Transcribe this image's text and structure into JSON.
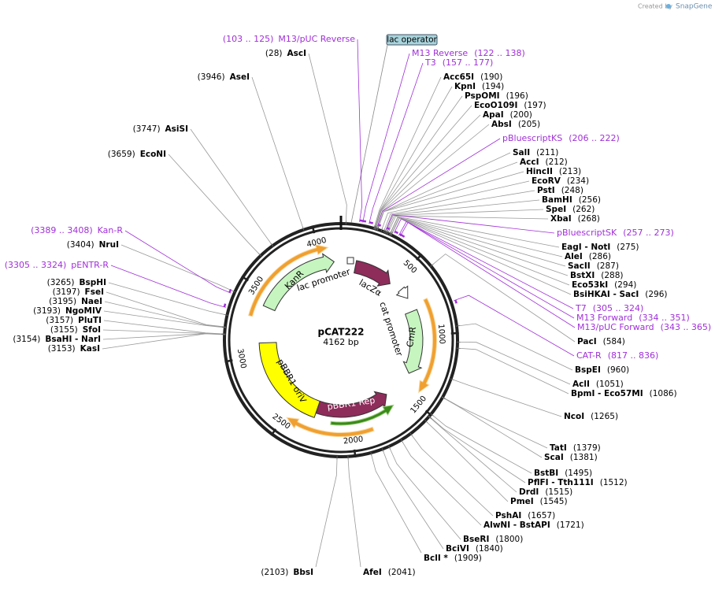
{
  "header": {
    "created_by": "Created by",
    "brand": "SnapGene"
  },
  "plasmid": {
    "name": "pCAT222",
    "size": "4162 bp"
  },
  "ruler": [
    "500",
    "1000",
    "1500",
    "2000",
    "2500",
    "3000",
    "3500",
    "4000"
  ],
  "features": {
    "kanr": "KanR",
    "lac_promoter": "lac promoter",
    "lacz": "lacZα",
    "cat_promoter": "cat promoter",
    "cmr": "CmR",
    "oriv": "pBBR1 oriV",
    "rep": "pBBR1 Rep",
    "lac_operator": "lac operator"
  },
  "sites": [
    {
      "name": "Acc65I",
      "position": "(190)"
    },
    {
      "name": "KpnI",
      "position": "(194)"
    },
    {
      "name": "PspOMI",
      "position": "(196)"
    },
    {
      "name": "EcoO109I",
      "position": "(197)"
    },
    {
      "name": "ApaI",
      "position": "(200)"
    },
    {
      "name": "AbsI",
      "position": "(205)"
    },
    {
      "name": "SalI",
      "position": "(211)"
    },
    {
      "name": "AccI",
      "position": "(212)"
    },
    {
      "name": "HincII",
      "position": "(213)"
    },
    {
      "name": "EcoRV",
      "position": "(234)"
    },
    {
      "name": "PstI",
      "position": "(248)"
    },
    {
      "name": "BamHI",
      "position": "(256)"
    },
    {
      "name": "SpeI",
      "position": "(262)"
    },
    {
      "name": "XbaI",
      "position": "(268)"
    },
    {
      "name": "EagI  - NotI",
      "position": "(275)"
    },
    {
      "name": "AleI",
      "position": "(286)"
    },
    {
      "name": "SacII",
      "position": "(287)"
    },
    {
      "name": "BstXI",
      "position": "(288)"
    },
    {
      "name": "Eco53kI",
      "position": "(294)"
    },
    {
      "name": "BsiHKAI  - SacI",
      "position": "(296)"
    },
    {
      "name": "PacI",
      "position": "(584)"
    },
    {
      "name": "BspEI",
      "position": "(960)"
    },
    {
      "name": "AclI",
      "position": "(1051)"
    },
    {
      "name": "BpmI  - Eco57MI",
      "position": "(1086)"
    },
    {
      "name": "NcoI",
      "position": "(1265)"
    },
    {
      "name": "TatI",
      "position": "(1379)"
    },
    {
      "name": "ScaI",
      "position": "(1381)"
    },
    {
      "name": "BstBI",
      "position": "(1495)"
    },
    {
      "name": "PflFI  - Tth111I",
      "position": "(1512)"
    },
    {
      "name": "DrdI",
      "position": "(1515)"
    },
    {
      "name": "PmeI",
      "position": "(1545)"
    },
    {
      "name": "PshAI",
      "position": "(1657)"
    },
    {
      "name": "AlwNI  - BstAPI",
      "position": "(1721)"
    },
    {
      "name": "BseRI",
      "position": "(1800)"
    },
    {
      "name": "BciVI",
      "position": "(1840)"
    },
    {
      "name": "BclI *",
      "position": "(1909)"
    },
    {
      "name": "AfeI",
      "position": "(2041)"
    },
    {
      "name": "BbsI",
      "position": "(2103)"
    },
    {
      "name": "KasI",
      "position": "(3153)"
    },
    {
      "name": "BsaHI  - NarI",
      "position": "(3154)"
    },
    {
      "name": "SfoI",
      "position": "(3155)"
    },
    {
      "name": "PluTI",
      "position": "(3157)"
    },
    {
      "name": "NgoMIV",
      "position": "(3193)"
    },
    {
      "name": "NaeI",
      "position": "(3195)"
    },
    {
      "name": "FseI",
      "position": "(3197)"
    },
    {
      "name": "BspHI",
      "position": "(3265)"
    },
    {
      "name": "NruI",
      "position": "(3404)"
    },
    {
      "name": "EcoNI",
      "position": "(3659)"
    },
    {
      "name": "AsiSI",
      "position": "(3747)"
    },
    {
      "name": "AseI",
      "position": "(3946)"
    },
    {
      "name": "AscI",
      "position": "(28)"
    }
  ],
  "primers": [
    {
      "name": "M13/pUC Reverse",
      "range": "(103 .. 125)"
    },
    {
      "name": "M13 Reverse",
      "range": "(122 .. 138)"
    },
    {
      "name": "T3",
      "range": "(157 .. 177)"
    },
    {
      "name": "pBluescriptKS",
      "range": "(206 .. 222)"
    },
    {
      "name": "pBluescriptSK",
      "range": "(257 .. 273)"
    },
    {
      "name": "T7",
      "range": "(305 .. 324)"
    },
    {
      "name": "M13 Forward",
      "range": "(334 .. 351)"
    },
    {
      "name": "M13/pUC Forward",
      "range": "(343 .. 365)"
    },
    {
      "name": "CAT-R",
      "range": "(817 .. 836)"
    },
    {
      "name": "Kan-R",
      "range": "(3389 .. 3408)"
    },
    {
      "name": "pENTR-R",
      "range": "(3305 .. 3324)"
    }
  ]
}
